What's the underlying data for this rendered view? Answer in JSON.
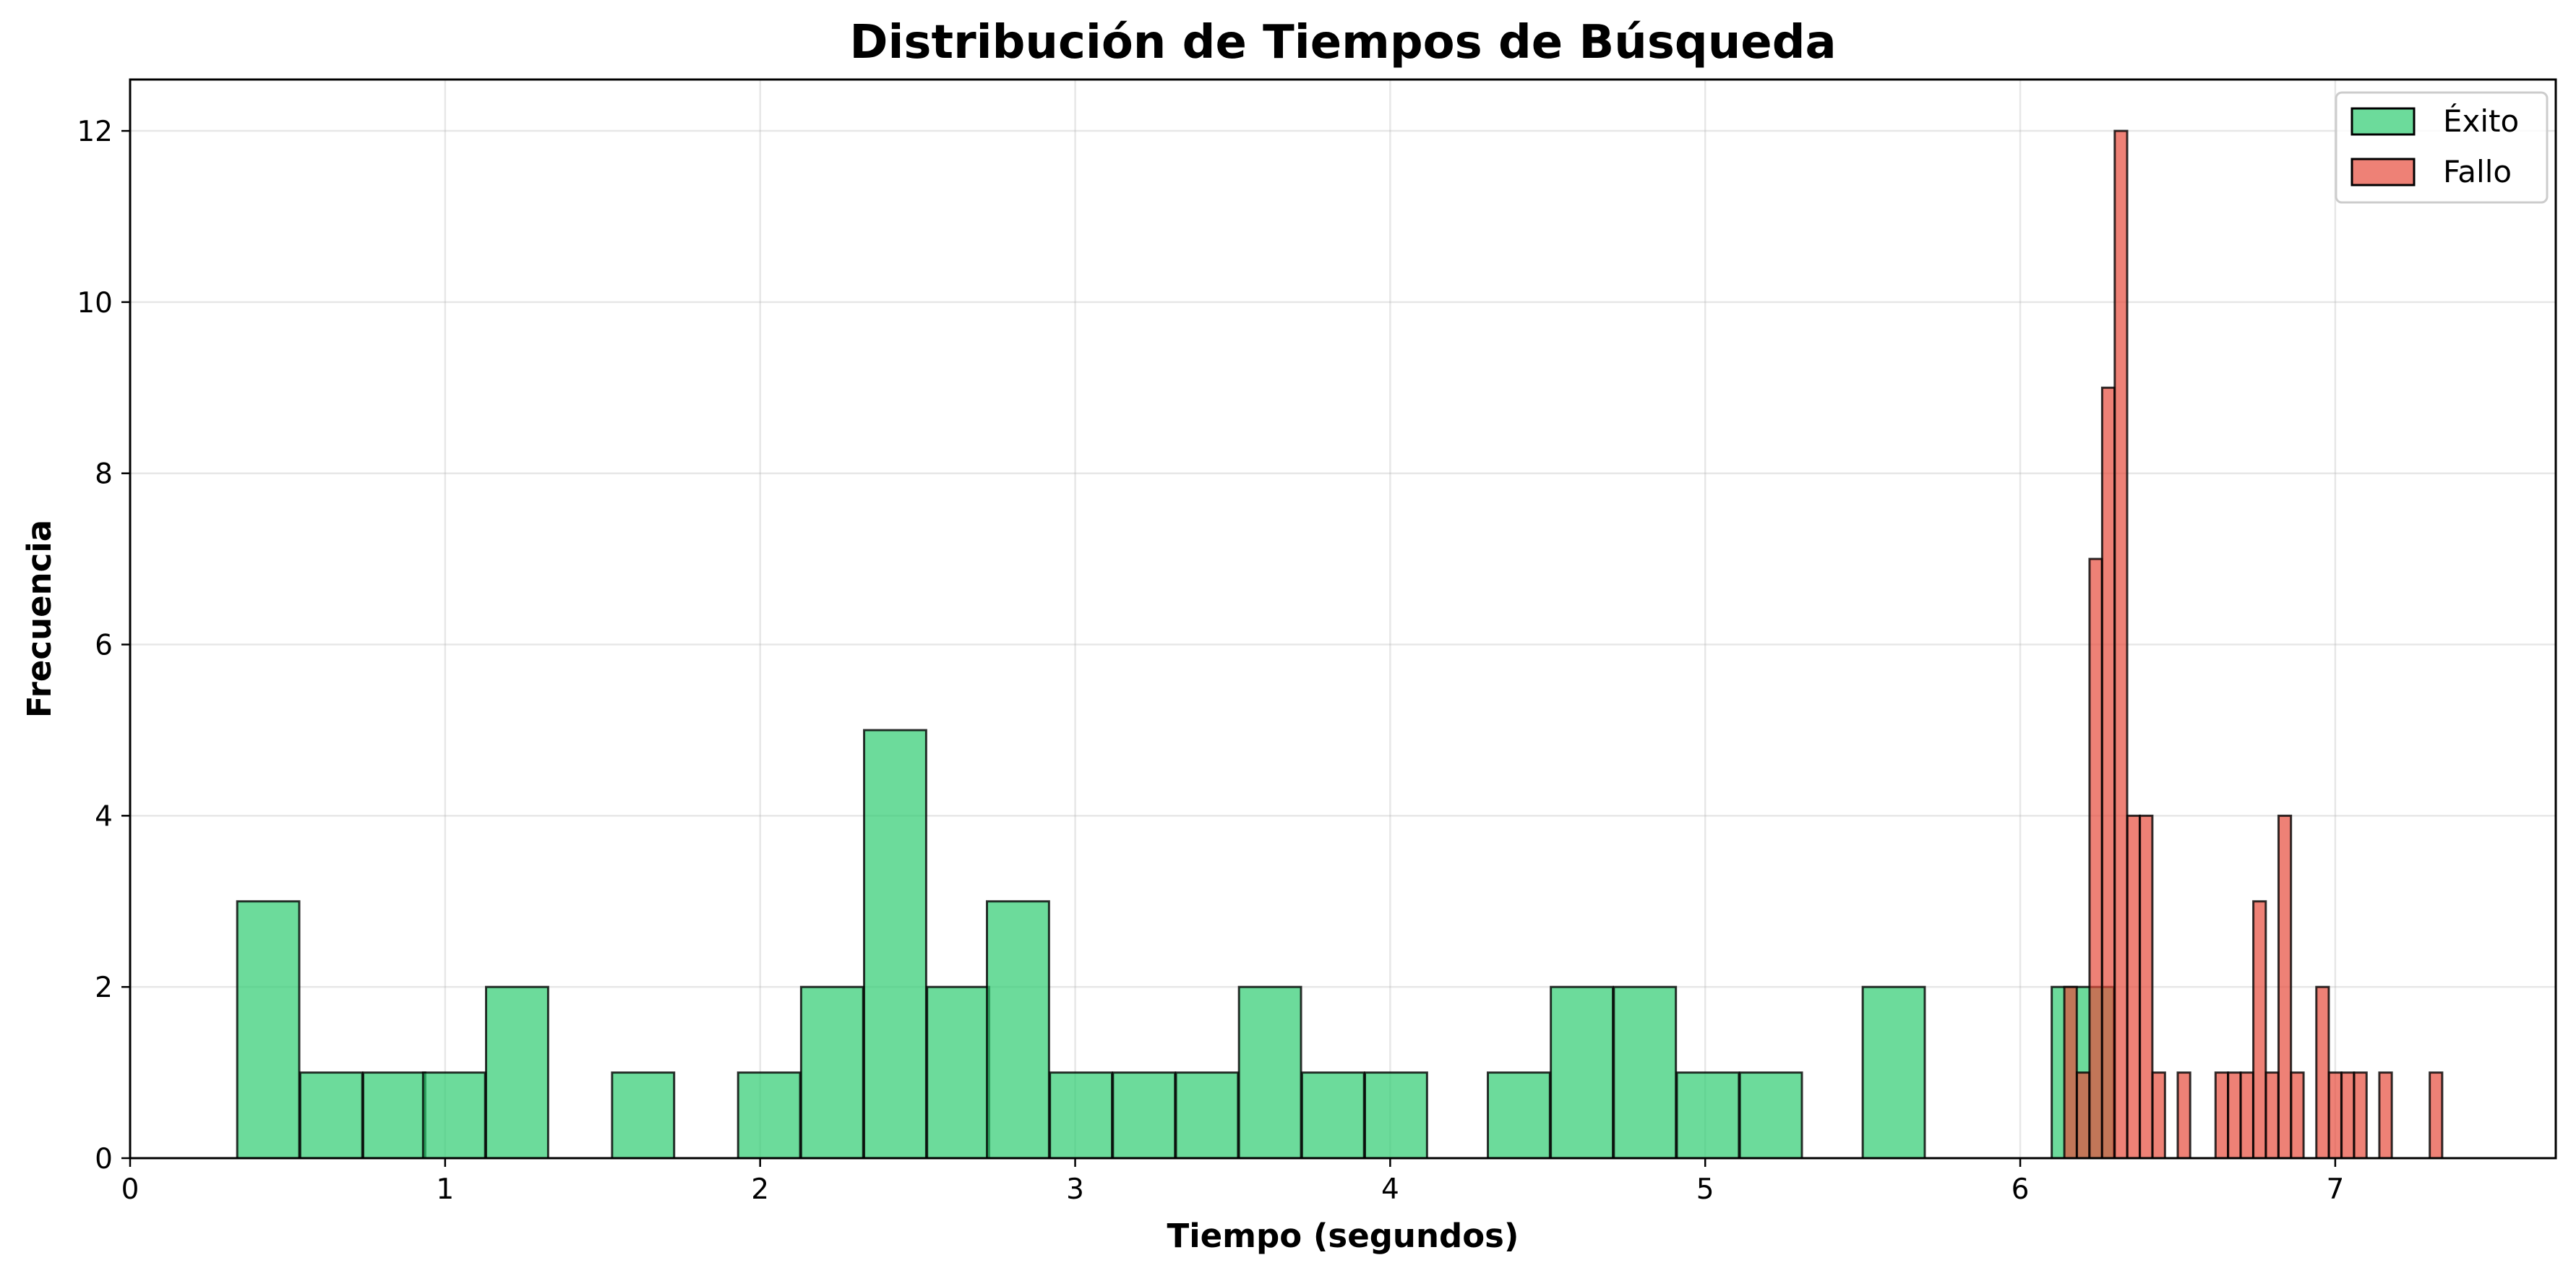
{
  "chart_data": {
    "type": "bar",
    "title": "Distribución de Tiempos de Búsqueda",
    "xlabel": "Tiempo (segundos)",
    "ylabel": "Frecuencia",
    "xlim": [
      0,
      7.7
    ],
    "ylim": [
      0,
      12.6
    ],
    "x_ticks": [
      0,
      1,
      2,
      3,
      4,
      5,
      6,
      7
    ],
    "y_ticks": [
      0,
      2,
      4,
      6,
      8,
      10,
      12
    ],
    "grid": true,
    "legend_position": "top-right",
    "series": [
      {
        "name": "Éxito",
        "color": "#2ecc71",
        "bin_width": 0.197,
        "bins": [
          {
            "x0": 0.34,
            "count": 3
          },
          {
            "x0": 0.54,
            "count": 1
          },
          {
            "x0": 0.74,
            "count": 1
          },
          {
            "x0": 0.93,
            "count": 1
          },
          {
            "x0": 1.13,
            "count": 2
          },
          {
            "x0": 1.53,
            "count": 1
          },
          {
            "x0": 1.93,
            "count": 1
          },
          {
            "x0": 2.13,
            "count": 2
          },
          {
            "x0": 2.33,
            "count": 5
          },
          {
            "x0": 2.53,
            "count": 2
          },
          {
            "x0": 2.72,
            "count": 3
          },
          {
            "x0": 2.92,
            "count": 1
          },
          {
            "x0": 3.12,
            "count": 1
          },
          {
            "x0": 3.32,
            "count": 1
          },
          {
            "x0": 3.52,
            "count": 2
          },
          {
            "x0": 3.72,
            "count": 1
          },
          {
            "x0": 3.92,
            "count": 1
          },
          {
            "x0": 4.31,
            "count": 1
          },
          {
            "x0": 4.51,
            "count": 2
          },
          {
            "x0": 4.71,
            "count": 2
          },
          {
            "x0": 4.91,
            "count": 1
          },
          {
            "x0": 5.11,
            "count": 1
          },
          {
            "x0": 5.5,
            "count": 2
          },
          {
            "x0": 6.1,
            "count": 2
          }
        ]
      },
      {
        "name": "Fallo",
        "color": "#e74c3c",
        "bin_width": 0.0395,
        "bins": [
          {
            "x0": 6.14,
            "count": 2
          },
          {
            "x0": 6.18,
            "count": 1
          },
          {
            "x0": 6.22,
            "count": 7
          },
          {
            "x0": 6.26,
            "count": 9
          },
          {
            "x0": 6.3,
            "count": 12
          },
          {
            "x0": 6.34,
            "count": 4
          },
          {
            "x0": 6.38,
            "count": 4
          },
          {
            "x0": 6.42,
            "count": 1
          },
          {
            "x0": 6.5,
            "count": 1
          },
          {
            "x0": 6.62,
            "count": 1
          },
          {
            "x0": 6.66,
            "count": 1
          },
          {
            "x0": 6.7,
            "count": 1
          },
          {
            "x0": 6.74,
            "count": 3
          },
          {
            "x0": 6.78,
            "count": 1
          },
          {
            "x0": 6.82,
            "count": 4
          },
          {
            "x0": 6.86,
            "count": 1
          },
          {
            "x0": 6.94,
            "count": 2
          },
          {
            "x0": 6.98,
            "count": 1
          },
          {
            "x0": 7.02,
            "count": 1
          },
          {
            "x0": 7.06,
            "count": 1
          },
          {
            "x0": 7.14,
            "count": 1
          },
          {
            "x0": 7.3,
            "count": 1
          }
        ]
      }
    ]
  }
}
